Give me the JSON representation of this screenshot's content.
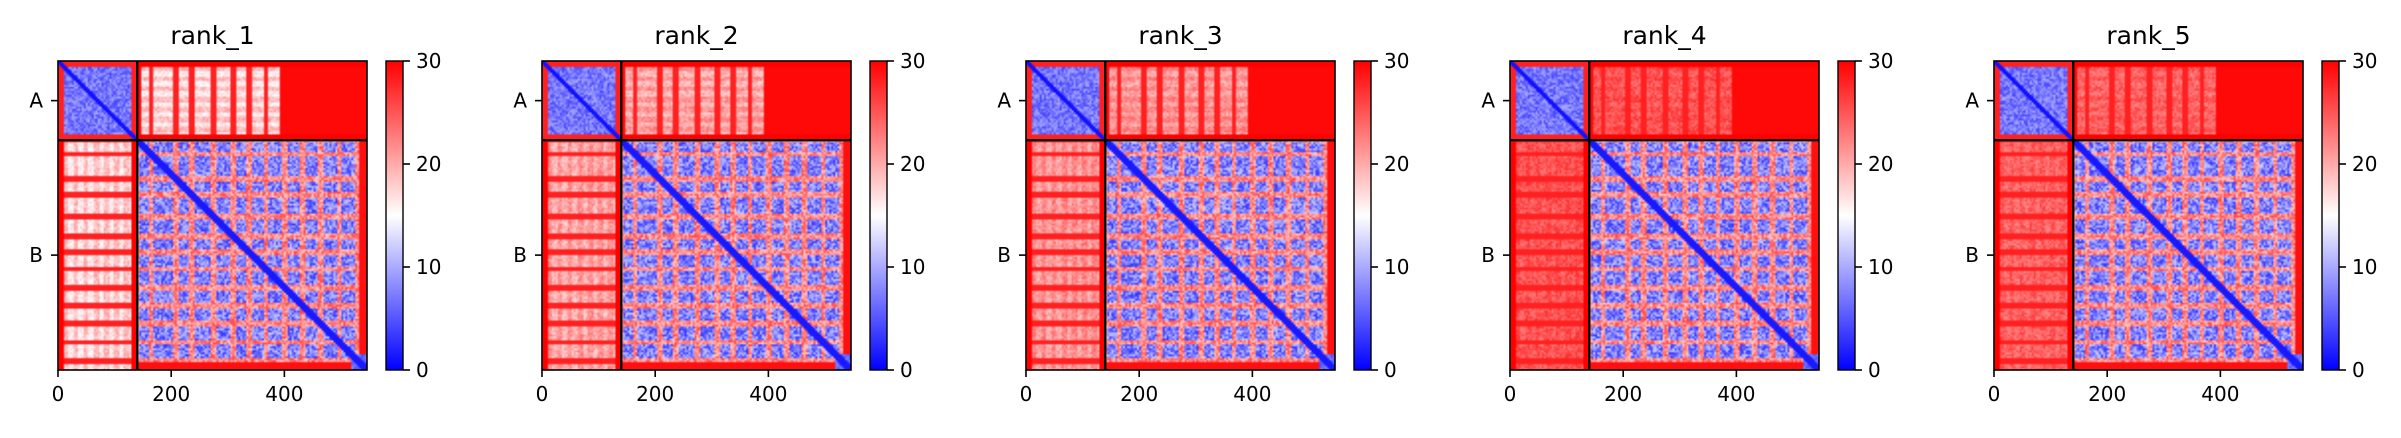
{
  "chart_data": [
    {
      "type": "heatmap",
      "title": "rank_1",
      "x_ticks": [
        0,
        200,
        400
      ],
      "x_range": [
        0,
        546
      ],
      "y_range": [
        0,
        546
      ],
      "chain_boundary": 140,
      "chain_labels": [
        {
          "label": "A",
          "position": 70
        },
        {
          "label": "B",
          "position": 343
        }
      ],
      "colorbar": {
        "ticks": [
          0,
          10,
          20,
          30
        ],
        "range": [
          0,
          30
        ],
        "colors": [
          "#0000ff",
          "#ffffff",
          "#ff0000"
        ]
      },
      "inter_chain_tint": 0.55
    },
    {
      "type": "heatmap",
      "title": "rank_2",
      "x_ticks": [
        0,
        200,
        400
      ],
      "x_range": [
        0,
        546
      ],
      "y_range": [
        0,
        546
      ],
      "chain_boundary": 140,
      "chain_labels": [
        {
          "label": "A",
          "position": 70
        },
        {
          "label": "B",
          "position": 343
        }
      ],
      "colorbar": {
        "ticks": [
          0,
          10,
          20,
          30
        ],
        "range": [
          0,
          30
        ],
        "colors": [
          "#0000ff",
          "#ffffff",
          "#ff0000"
        ]
      },
      "inter_chain_tint": 0.4
    },
    {
      "type": "heatmap",
      "title": "rank_3",
      "x_ticks": [
        0,
        200,
        400
      ],
      "x_range": [
        0,
        546
      ],
      "y_range": [
        0,
        546
      ],
      "chain_boundary": 140,
      "chain_labels": [
        {
          "label": "A",
          "position": 70
        },
        {
          "label": "B",
          "position": 343
        }
      ],
      "colorbar": {
        "ticks": [
          0,
          10,
          20,
          30
        ],
        "range": [
          0,
          30
        ],
        "colors": [
          "#0000ff",
          "#ffffff",
          "#ff0000"
        ]
      },
      "inter_chain_tint": 0.35
    },
    {
      "type": "heatmap",
      "title": "rank_4",
      "x_ticks": [
        0,
        200,
        400
      ],
      "x_range": [
        0,
        546
      ],
      "y_range": [
        0,
        546
      ],
      "chain_boundary": 140,
      "chain_labels": [
        {
          "label": "A",
          "position": 70
        },
        {
          "label": "B",
          "position": 343
        }
      ],
      "colorbar": {
        "ticks": [
          0,
          10,
          20,
          30
        ],
        "range": [
          0,
          30
        ],
        "colors": [
          "#0000ff",
          "#ffffff",
          "#ff0000"
        ]
      },
      "inter_chain_tint": 0.15
    },
    {
      "type": "heatmap",
      "title": "rank_5",
      "x_ticks": [
        0,
        200,
        400
      ],
      "x_range": [
        0,
        546
      ],
      "y_range": [
        0,
        546
      ],
      "chain_boundary": 140,
      "chain_labels": [
        {
          "label": "A",
          "position": 70
        },
        {
          "label": "B",
          "position": 343
        }
      ],
      "colorbar": {
        "ticks": [
          0,
          10,
          20,
          30
        ],
        "range": [
          0,
          30
        ],
        "colors": [
          "#0000ff",
          "#ffffff",
          "#ff0000"
        ]
      },
      "inter_chain_tint": 0.2
    }
  ]
}
